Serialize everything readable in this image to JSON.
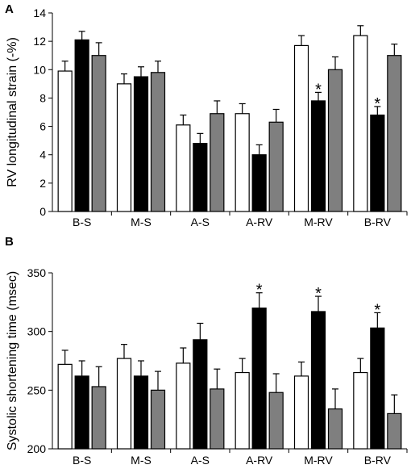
{
  "colors": {
    "series": [
      "#ffffff",
      "#000000",
      "#7f7f7f"
    ],
    "outline": "#000000",
    "errorbar": "#000000"
  },
  "chart_data": [
    {
      "type": "bar",
      "panel_label": "A",
      "ylabel": "RV longitudinal strain (-%)",
      "xlabel": "",
      "ylim": [
        0,
        14
      ],
      "yticks": [
        0,
        2,
        4,
        6,
        8,
        10,
        12,
        14
      ],
      "grid": false,
      "categories": [
        "B-S",
        "M-S",
        "A-S",
        "A-RV",
        "M-RV",
        "B-RV"
      ],
      "series": [
        {
          "values": [
            9.9,
            9.0,
            6.1,
            6.9,
            11.7,
            12.4
          ],
          "errors": [
            0.7,
            0.7,
            0.7,
            0.7,
            0.7,
            0.7
          ]
        },
        {
          "values": [
            12.1,
            9.5,
            4.8,
            4.0,
            7.8,
            6.8
          ],
          "errors": [
            0.6,
            0.7,
            0.7,
            0.7,
            0.6,
            0.6
          ]
        },
        {
          "values": [
            11.0,
            9.8,
            6.9,
            6.3,
            10.0,
            11.0
          ],
          "errors": [
            0.9,
            0.8,
            0.9,
            0.9,
            0.9,
            0.8
          ]
        }
      ],
      "annotations": [
        {
          "category": "M-RV",
          "series": 1,
          "text": "*"
        },
        {
          "category": "B-RV",
          "series": 1,
          "text": "*"
        }
      ]
    },
    {
      "type": "bar",
      "panel_label": "B",
      "ylabel": "Systolic shortening time (msec)",
      "xlabel": "",
      "ylim": [
        200,
        350
      ],
      "yticks": [
        200,
        250,
        300,
        350
      ],
      "grid": false,
      "categories": [
        "B-S",
        "M-S",
        "A-S",
        "A-RV",
        "M-RV",
        "B-RV"
      ],
      "series": [
        {
          "values": [
            272,
            277,
            273,
            265,
            262,
            265
          ],
          "errors": [
            12,
            12,
            13,
            12,
            12,
            12
          ]
        },
        {
          "values": [
            262,
            262,
            293,
            320,
            317,
            303
          ],
          "errors": [
            13,
            13,
            14,
            13,
            13,
            13
          ]
        },
        {
          "values": [
            253,
            250,
            251,
            248,
            234,
            230
          ],
          "errors": [
            17,
            16,
            17,
            16,
            17,
            16
          ]
        }
      ],
      "annotations": [
        {
          "category": "A-RV",
          "series": 1,
          "text": "*"
        },
        {
          "category": "M-RV",
          "series": 1,
          "text": "*"
        },
        {
          "category": "B-RV",
          "series": 1,
          "text": "*"
        }
      ]
    }
  ]
}
